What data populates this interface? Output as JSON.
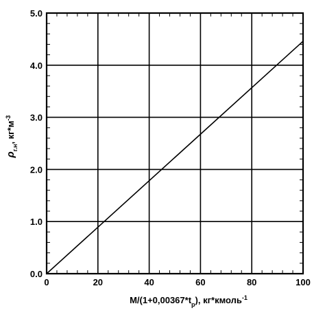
{
  "chart_data": {
    "type": "line",
    "title": "",
    "xlabel": "M/(1+0,00367*t_p), кг*кмоль^-1",
    "ylabel": "ρ_г.н, кг*м^-3",
    "xlabel_parts": {
      "main": "M/(1+0,00367*t",
      "sub": "p",
      "tail": "),  кг*кмоль",
      "sup": "-1"
    },
    "ylabel_parts": {
      "main": "ρ",
      "sub": "г.н",
      "tail": ",  кг*м",
      "sup": "-3"
    },
    "xlim": [
      0,
      100
    ],
    "ylim": [
      0,
      5.0
    ],
    "x_ticks": [
      0,
      20,
      40,
      60,
      80,
      100
    ],
    "x_tick_labels": [
      "0",
      "20",
      "40",
      "60",
      "80",
      "100"
    ],
    "y_ticks": [
      0,
      1.0,
      2.0,
      3.0,
      4.0,
      5.0
    ],
    "y_tick_labels": [
      "0.0",
      "1.0",
      "2.0",
      "3.0",
      "4.0",
      "5.0"
    ],
    "grid": true,
    "series": [
      {
        "x": [
          0,
          100
        ],
        "y": [
          0,
          4.46
        ]
      }
    ],
    "colors": {
      "line": "#000000",
      "grid": "#000000",
      "background": "#ffffff"
    }
  }
}
